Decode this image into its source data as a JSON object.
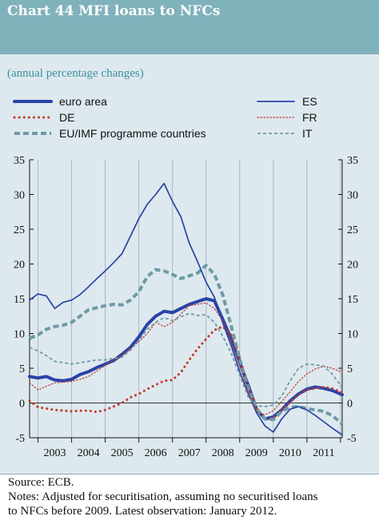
{
  "title": "Chart 44 MFI loans to NFCs",
  "subtitle": "(annual percentage changes)",
  "source": "Source: ECB.",
  "notes": [
    "Notes: Adjusted for securitisation, assuming no securitised loans",
    "to NFCs before 2009. Latest observation: January 2012."
  ],
  "colors": {
    "header": "#7fb2bb",
    "panel": "#dde9ee",
    "euro_area": "#2a43a8",
    "ES": "#2a43a8",
    "DE": "#c0392b",
    "FR": "#c0392b",
    "programme": "#6e9aa6",
    "IT": "#6e9aa6"
  },
  "chart_data": {
    "type": "line",
    "x_unit": "year",
    "xlim": [
      2002.75,
      2012.05
    ],
    "ylim": [
      -5,
      35
    ],
    "y_ticks": [
      -5,
      0,
      5,
      10,
      15,
      20,
      25,
      30,
      35
    ],
    "y_tick_labels": [
      "-5",
      "0",
      "5",
      "10",
      "15",
      "20",
      "25",
      "30",
      "35"
    ],
    "x_ticks": [
      "2003",
      "2004",
      "2005",
      "2006",
      "2007",
      "2008",
      "2009",
      "2010",
      "2011"
    ],
    "grid": "vertical",
    "legend": {
      "placement": "top",
      "entries": [
        "euro area",
        "DE",
        "EU/IMF programme countries",
        "ES",
        "FR",
        "IT"
      ]
    },
    "series": [
      {
        "name": "euro area",
        "style": "thick-solid",
        "points": [
          [
            2002.75,
            3.8
          ],
          [
            2003.0,
            3.6
          ],
          [
            2003.25,
            3.8
          ],
          [
            2003.5,
            3.3
          ],
          [
            2003.75,
            3.2
          ],
          [
            2004.0,
            3.4
          ],
          [
            2004.25,
            4.1
          ],
          [
            2004.5,
            4.5
          ],
          [
            2004.75,
            5.1
          ],
          [
            2005.0,
            5.6
          ],
          [
            2005.25,
            6.1
          ],
          [
            2005.5,
            7.0
          ],
          [
            2005.75,
            8.0
          ],
          [
            2006.0,
            9.5
          ],
          [
            2006.25,
            11.3
          ],
          [
            2006.5,
            12.5
          ],
          [
            2006.75,
            13.2
          ],
          [
            2007.0,
            13.0
          ],
          [
            2007.25,
            13.6
          ],
          [
            2007.5,
            14.2
          ],
          [
            2007.75,
            14.6
          ],
          [
            2008.0,
            15.0
          ],
          [
            2008.25,
            14.7
          ],
          [
            2008.5,
            12.0
          ],
          [
            2008.75,
            9.2
          ],
          [
            2009.0,
            5.8
          ],
          [
            2009.25,
            2.6
          ],
          [
            2009.5,
            -0.9
          ],
          [
            2009.75,
            -2.3
          ],
          [
            2010.0,
            -2.0
          ],
          [
            2010.25,
            -1.0
          ],
          [
            2010.5,
            0.3
          ],
          [
            2010.75,
            1.3
          ],
          [
            2011.0,
            2.0
          ],
          [
            2011.25,
            2.3
          ],
          [
            2011.5,
            2.1
          ],
          [
            2011.75,
            1.8
          ],
          [
            2012.05,
            1.2
          ]
        ]
      },
      {
        "name": "DE",
        "style": "thick-dotted",
        "points": [
          [
            2002.75,
            0.3
          ],
          [
            2003.0,
            -0.6
          ],
          [
            2003.25,
            -0.8
          ],
          [
            2003.5,
            -1.0
          ],
          [
            2003.75,
            -1.1
          ],
          [
            2004.0,
            -1.2
          ],
          [
            2004.25,
            -1.1
          ],
          [
            2004.5,
            -1.1
          ],
          [
            2004.75,
            -1.3
          ],
          [
            2005.0,
            -1.0
          ],
          [
            2005.25,
            -0.5
          ],
          [
            2005.5,
            0.0
          ],
          [
            2005.75,
            0.8
          ],
          [
            2006.0,
            1.3
          ],
          [
            2006.25,
            2.0
          ],
          [
            2006.5,
            2.6
          ],
          [
            2006.75,
            3.2
          ],
          [
            2007.0,
            3.3
          ],
          [
            2007.25,
            4.4
          ],
          [
            2007.5,
            6.2
          ],
          [
            2007.75,
            7.8
          ],
          [
            2008.0,
            9.2
          ],
          [
            2008.25,
            10.5
          ],
          [
            2008.5,
            11.0
          ],
          [
            2008.75,
            9.8
          ],
          [
            2009.0,
            6.5
          ],
          [
            2009.25,
            2.5
          ],
          [
            2009.5,
            -0.8
          ],
          [
            2009.75,
            -2.4
          ],
          [
            2010.0,
            -2.2
          ],
          [
            2010.25,
            -1.0
          ],
          [
            2010.5,
            0.1
          ],
          [
            2010.75,
            1.2
          ],
          [
            2011.0,
            1.9
          ],
          [
            2011.25,
            2.1
          ],
          [
            2011.5,
            2.3
          ],
          [
            2011.75,
            2.1
          ],
          [
            2012.05,
            1.5
          ]
        ]
      },
      {
        "name": "EU/IMF programme countries",
        "style": "thick-dashed",
        "points": [
          [
            2002.75,
            9.3
          ],
          [
            2003.0,
            9.8
          ],
          [
            2003.25,
            10.6
          ],
          [
            2003.5,
            11.0
          ],
          [
            2003.75,
            11.2
          ],
          [
            2004.0,
            11.6
          ],
          [
            2004.25,
            12.5
          ],
          [
            2004.5,
            13.4
          ],
          [
            2004.75,
            13.7
          ],
          [
            2005.0,
            14.0
          ],
          [
            2005.25,
            14.2
          ],
          [
            2005.5,
            14.1
          ],
          [
            2005.75,
            14.8
          ],
          [
            2006.0,
            16.0
          ],
          [
            2006.25,
            18.2
          ],
          [
            2006.5,
            19.2
          ],
          [
            2006.75,
            19.0
          ],
          [
            2007.0,
            18.5
          ],
          [
            2007.25,
            17.9
          ],
          [
            2007.5,
            18.3
          ],
          [
            2007.75,
            18.7
          ],
          [
            2008.0,
            19.8
          ],
          [
            2008.25,
            18.5
          ],
          [
            2008.5,
            15.5
          ],
          [
            2008.75,
            11.0
          ],
          [
            2009.0,
            6.3
          ],
          [
            2009.25,
            2.2
          ],
          [
            2009.5,
            -0.8
          ],
          [
            2009.75,
            -2.3
          ],
          [
            2010.0,
            -2.4
          ],
          [
            2010.25,
            -1.2
          ],
          [
            2010.5,
            -0.6
          ],
          [
            2010.75,
            -0.5
          ],
          [
            2011.0,
            -0.8
          ],
          [
            2011.25,
            -1.0
          ],
          [
            2011.5,
            -1.2
          ],
          [
            2011.75,
            -1.8
          ],
          [
            2012.05,
            -3.0
          ]
        ]
      },
      {
        "name": "ES",
        "style": "thin-solid",
        "points": [
          [
            2002.75,
            14.8
          ],
          [
            2003.0,
            15.7
          ],
          [
            2003.25,
            15.4
          ],
          [
            2003.5,
            13.6
          ],
          [
            2003.75,
            14.5
          ],
          [
            2004.0,
            14.8
          ],
          [
            2004.25,
            15.6
          ],
          [
            2004.5,
            16.7
          ],
          [
            2004.75,
            17.9
          ],
          [
            2005.0,
            19.0
          ],
          [
            2005.25,
            20.2
          ],
          [
            2005.5,
            21.5
          ],
          [
            2005.75,
            24.0
          ],
          [
            2006.0,
            26.5
          ],
          [
            2006.25,
            28.6
          ],
          [
            2006.5,
            30.0
          ],
          [
            2006.75,
            31.6
          ],
          [
            2007.0,
            29.0
          ],
          [
            2007.25,
            26.8
          ],
          [
            2007.5,
            23.0
          ],
          [
            2007.75,
            20.3
          ],
          [
            2008.0,
            17.4
          ],
          [
            2008.25,
            15.2
          ],
          [
            2008.5,
            11.5
          ],
          [
            2008.75,
            8.2
          ],
          [
            2009.0,
            4.5
          ],
          [
            2009.25,
            1.4
          ],
          [
            2009.5,
            -1.4
          ],
          [
            2009.75,
            -3.3
          ],
          [
            2010.0,
            -4.2
          ],
          [
            2010.25,
            -2.3
          ],
          [
            2010.5,
            -0.9
          ],
          [
            2010.75,
            -0.5
          ],
          [
            2011.0,
            -1.0
          ],
          [
            2011.25,
            -1.8
          ],
          [
            2011.5,
            -2.7
          ],
          [
            2011.75,
            -3.6
          ],
          [
            2012.05,
            -4.6
          ]
        ]
      },
      {
        "name": "FR",
        "style": "thin-dotted",
        "points": [
          [
            2002.75,
            2.9
          ],
          [
            2003.0,
            1.9
          ],
          [
            2003.25,
            2.4
          ],
          [
            2003.5,
            2.9
          ],
          [
            2003.75,
            3.0
          ],
          [
            2004.0,
            3.1
          ],
          [
            2004.25,
            3.4
          ],
          [
            2004.5,
            3.8
          ],
          [
            2004.75,
            4.6
          ],
          [
            2005.0,
            5.4
          ],
          [
            2005.25,
            6.1
          ],
          [
            2005.5,
            6.9
          ],
          [
            2005.75,
            7.8
          ],
          [
            2006.0,
            8.8
          ],
          [
            2006.25,
            10.0
          ],
          [
            2006.5,
            11.6
          ],
          [
            2006.75,
            11.0
          ],
          [
            2007.0,
            11.6
          ],
          [
            2007.25,
            12.8
          ],
          [
            2007.5,
            14.0
          ],
          [
            2007.75,
            14.2
          ],
          [
            2008.0,
            14.4
          ],
          [
            2008.25,
            13.6
          ],
          [
            2008.5,
            11.8
          ],
          [
            2008.75,
            9.0
          ],
          [
            2009.0,
            5.4
          ],
          [
            2009.25,
            1.6
          ],
          [
            2009.5,
            -1.2
          ],
          [
            2009.75,
            -1.7
          ],
          [
            2010.0,
            -1.1
          ],
          [
            2010.25,
            0.2
          ],
          [
            2010.5,
            1.6
          ],
          [
            2010.75,
            3.1
          ],
          [
            2011.0,
            4.2
          ],
          [
            2011.25,
            4.9
          ],
          [
            2011.5,
            5.3
          ],
          [
            2011.75,
            5.0
          ],
          [
            2012.05,
            4.4
          ]
        ]
      },
      {
        "name": "IT",
        "style": "thin-dashed",
        "points": [
          [
            2002.75,
            8.0
          ],
          [
            2003.0,
            7.5
          ],
          [
            2003.25,
            6.8
          ],
          [
            2003.5,
            6.0
          ],
          [
            2003.75,
            5.8
          ],
          [
            2004.0,
            5.6
          ],
          [
            2004.25,
            5.8
          ],
          [
            2004.5,
            6.0
          ],
          [
            2004.75,
            6.2
          ],
          [
            2005.0,
            6.2
          ],
          [
            2005.25,
            6.4
          ],
          [
            2005.5,
            6.6
          ],
          [
            2005.75,
            7.6
          ],
          [
            2006.0,
            9.0
          ],
          [
            2006.25,
            10.6
          ],
          [
            2006.5,
            11.6
          ],
          [
            2006.75,
            12.3
          ],
          [
            2007.0,
            11.8
          ],
          [
            2007.25,
            12.4
          ],
          [
            2007.5,
            12.9
          ],
          [
            2007.75,
            12.6
          ],
          [
            2008.0,
            12.7
          ],
          [
            2008.25,
            11.6
          ],
          [
            2008.5,
            9.6
          ],
          [
            2008.75,
            7.1
          ],
          [
            2009.0,
            4.0
          ],
          [
            2009.25,
            0.9
          ],
          [
            2009.5,
            -0.4
          ],
          [
            2009.75,
            -0.5
          ],
          [
            2010.0,
            -0.3
          ],
          [
            2010.25,
            1.0
          ],
          [
            2010.5,
            3.2
          ],
          [
            2010.75,
            5.0
          ],
          [
            2011.0,
            5.6
          ],
          [
            2011.25,
            5.5
          ],
          [
            2011.5,
            5.3
          ],
          [
            2011.75,
            4.2
          ],
          [
            2012.05,
            2.2
          ]
        ]
      }
    ]
  }
}
